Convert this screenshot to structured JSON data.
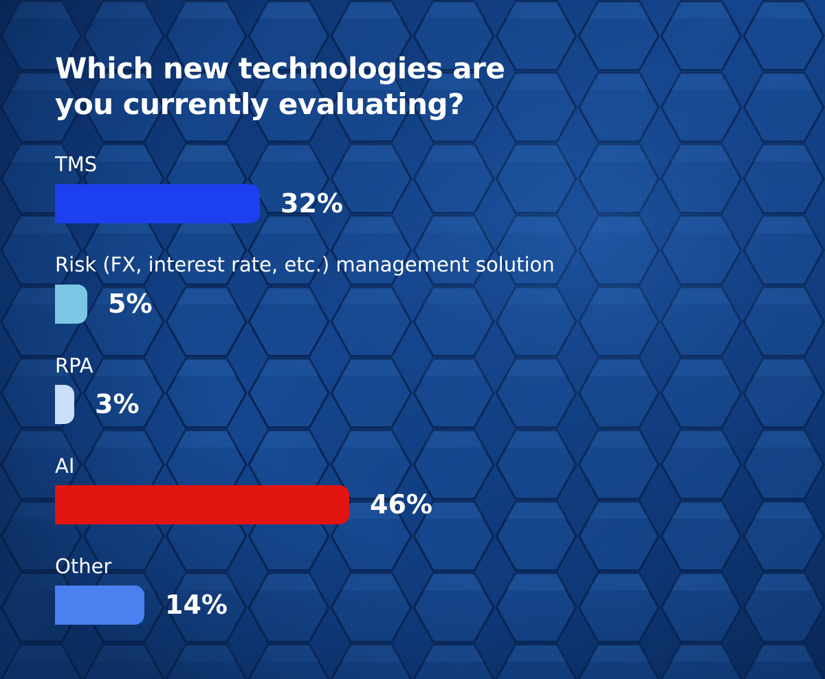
{
  "chart_data": {
    "type": "bar",
    "orientation": "horizontal",
    "title": "Which new technologies are you currently evaluating?",
    "title_lines": [
      "Which new technologies are",
      "you currently evaluating?"
    ],
    "categories": [
      "TMS",
      "Risk (FX, interest rate, etc.) management solution",
      "RPA",
      "AI",
      "Other"
    ],
    "values": [
      32,
      5,
      3,
      46,
      14
    ],
    "value_labels": [
      "32%",
      "5%",
      "3%",
      "46%",
      "14%"
    ],
    "colors": [
      "#1c3ff0",
      "#7cc6e6",
      "#c9dffa",
      "#e2140f",
      "#4a80f0"
    ],
    "unit": "%",
    "grid": false
  },
  "background": {
    "theme": "hexagon-pattern",
    "base_color": "#0d2f63",
    "highlight_color": "#2a5fb0"
  }
}
